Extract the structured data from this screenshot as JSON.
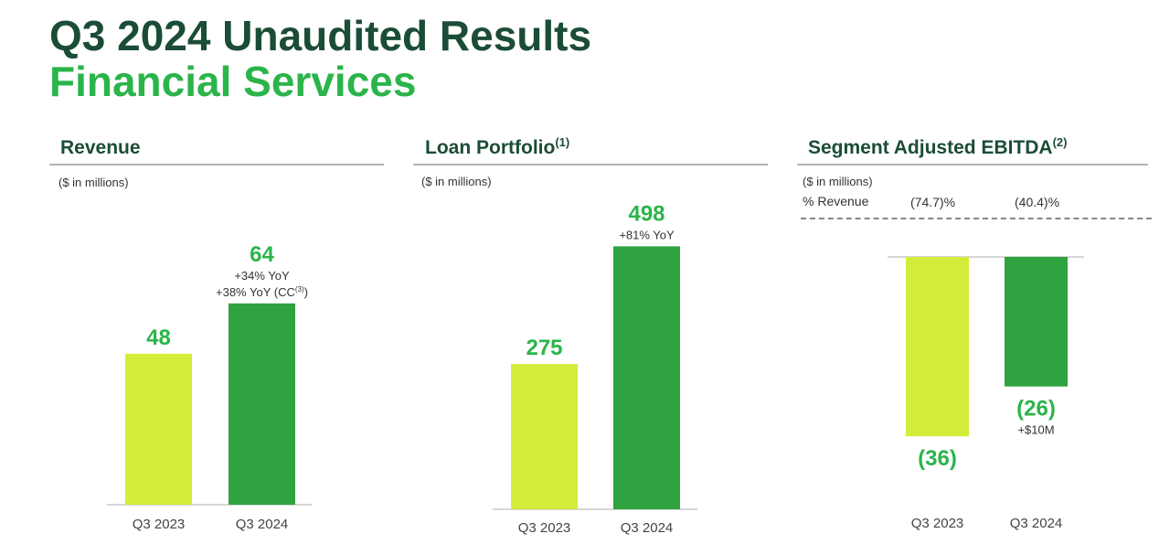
{
  "header": {
    "title": "Q3 2024 Unaudited Results",
    "subtitle": "Financial Services"
  },
  "colors": {
    "prior_year_bar": "#d4ec3a",
    "current_year_bar": "#2ea33f",
    "value_text": "#2bb44a",
    "title_dark": "#1b4d36"
  },
  "chart_data": [
    {
      "type": "bar",
      "title": "Revenue",
      "unit_label": "($ in millions)",
      "categories": [
        "Q3 2023",
        "Q3 2024"
      ],
      "values": [
        48,
        64
      ],
      "value_labels": [
        "48",
        "64"
      ],
      "annotations": [
        [],
        [
          "+34% YoY",
          "+38% YoY (CC(3))"
        ]
      ],
      "ylim": [
        0,
        70
      ]
    },
    {
      "type": "bar",
      "title": "Loan Portfolio",
      "title_footnote": "(1)",
      "unit_label": "($ in millions)",
      "categories": [
        "Q3 2023",
        "Q3 2024"
      ],
      "values": [
        275,
        498
      ],
      "value_labels": [
        "275",
        "498"
      ],
      "annotations": [
        [],
        [
          "+81% YoY"
        ]
      ],
      "ylim": [
        0,
        520
      ]
    },
    {
      "type": "bar",
      "title": "Segment Adjusted EBITDA",
      "title_footnote": "(2)",
      "unit_label": "($ in millions)",
      "pct_revenue_label": "% Revenue",
      "pct_revenue": [
        "(74.7)%",
        "(40.4)%"
      ],
      "categories": [
        "Q3 2023",
        "Q3 2024"
      ],
      "values": [
        -36,
        -26
      ],
      "value_labels": [
        "(36)",
        "(26)"
      ],
      "annotations": [
        [],
        [
          "+$10M"
        ]
      ],
      "ylim": [
        -40,
        0
      ]
    }
  ]
}
